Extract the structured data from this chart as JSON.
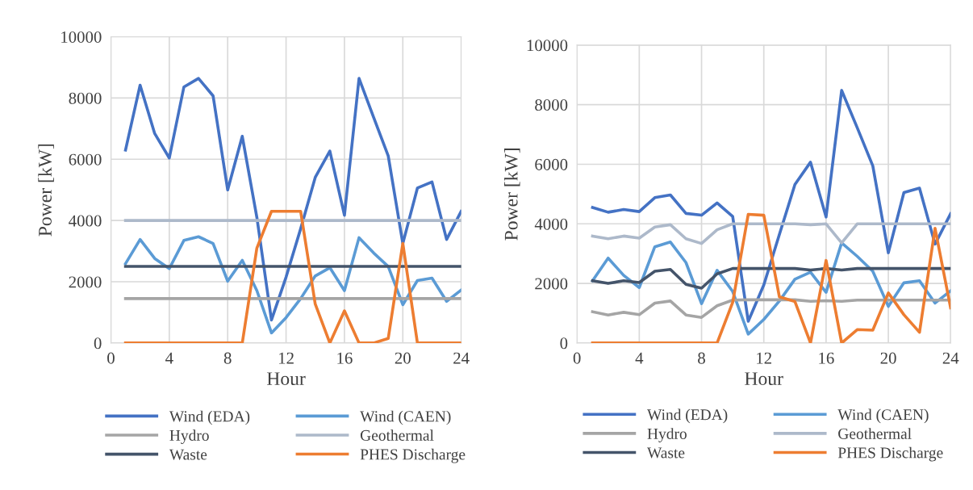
{
  "chart_data": [
    {
      "type": "line",
      "xlabel": "Hour",
      "ylabel": "Power [kW]",
      "xlim": [
        0,
        24
      ],
      "xticks": [
        0,
        4,
        8,
        12,
        16,
        20,
        24
      ],
      "ylim": [
        0,
        10000
      ],
      "yticks": [
        0,
        2000,
        4000,
        6000,
        8000,
        10000
      ],
      "grid": true,
      "legend": "bottom",
      "x": [
        1,
        2,
        3,
        4,
        5,
        6,
        7,
        8,
        9,
        10,
        11,
        12,
        13,
        14,
        15,
        16,
        17,
        18,
        19,
        20,
        21,
        22,
        23,
        24
      ],
      "series": [
        {
          "name": "Wind (EDA)",
          "color": "#4472c4",
          "values": [
            6300,
            8420,
            6840,
            6040,
            8360,
            8640,
            8070,
            5000,
            6750,
            4100,
            750,
            2150,
            3730,
            5410,
            6270,
            4170,
            8640,
            7370,
            6110,
            3250,
            5060,
            5260,
            3380,
            4300
          ]
        },
        {
          "name": "Wind (CAEN)",
          "color": "#5b9bd5",
          "values": [
            2590,
            3380,
            2760,
            2430,
            3350,
            3470,
            3250,
            2020,
            2700,
            1710,
            330,
            830,
            1450,
            2190,
            2460,
            1710,
            3440,
            2940,
            2500,
            1250,
            2040,
            2120,
            1360,
            1730
          ]
        },
        {
          "name": "Hydro",
          "color": "#a5a5a5",
          "values": [
            1450,
            1450,
            1450,
            1450,
            1450,
            1450,
            1450,
            1450,
            1450,
            1450,
            1450,
            1450,
            1450,
            1450,
            1450,
            1450,
            1450,
            1450,
            1450,
            1450,
            1450,
            1450,
            1450,
            1450
          ]
        },
        {
          "name": "Geothermal",
          "color": "#adb9ca",
          "values": [
            4000,
            4000,
            4000,
            4000,
            4000,
            4000,
            4000,
            4000,
            4000,
            4000,
            4000,
            4000,
            4000,
            4000,
            4000,
            4000,
            4000,
            4000,
            4000,
            4000,
            4000,
            4000,
            4000,
            4000
          ]
        },
        {
          "name": "Waste",
          "color": "#44546a",
          "values": [
            2500,
            2500,
            2500,
            2500,
            2500,
            2500,
            2500,
            2500,
            2500,
            2500,
            2500,
            2500,
            2500,
            2500,
            2500,
            2500,
            2500,
            2500,
            2500,
            2500,
            2500,
            2500,
            2500,
            2500
          ]
        },
        {
          "name": "PHES Discharge",
          "color": "#ed7d31",
          "values": [
            0,
            0,
            0,
            0,
            0,
            0,
            0,
            0,
            0,
            3100,
            4300,
            4300,
            4300,
            1270,
            0,
            1050,
            0,
            0,
            150,
            3250,
            0,
            0,
            0,
            0
          ]
        }
      ]
    },
    {
      "type": "line",
      "xlabel": "Hour",
      "ylabel": "Power [kW]",
      "xlim": [
        0,
        24
      ],
      "xticks": [
        0,
        4,
        8,
        12,
        16,
        20,
        24
      ],
      "ylim": [
        0,
        10000
      ],
      "yticks": [
        0,
        2000,
        4000,
        6000,
        8000,
        10000
      ],
      "grid": true,
      "legend": "bottom",
      "x": [
        1,
        2,
        3,
        4,
        5,
        6,
        7,
        8,
        9,
        10,
        11,
        12,
        13,
        14,
        15,
        16,
        17,
        18,
        19,
        20,
        21,
        22,
        23,
        24
      ],
      "series": [
        {
          "name": "Wind (EDA)",
          "color": "#4472c4",
          "values": [
            4550,
            4390,
            4480,
            4410,
            4880,
            4970,
            4350,
            4290,
            4700,
            4250,
            730,
            1950,
            3640,
            5320,
            6070,
            4230,
            8480,
            7230,
            5950,
            3030,
            5050,
            5200,
            3320,
            4340
          ]
        },
        {
          "name": "Wind (CAEN)",
          "color": "#5b9bd5",
          "values": [
            2090,
            2850,
            2270,
            1860,
            3230,
            3390,
            2700,
            1320,
            2440,
            1730,
            300,
            790,
            1410,
            2140,
            2380,
            1700,
            3360,
            2910,
            2410,
            1230,
            2020,
            2090,
            1340,
            1750
          ]
        },
        {
          "name": "Hydro",
          "color": "#a5a5a5",
          "values": [
            1050,
            940,
            1030,
            950,
            1340,
            1410,
            940,
            860,
            1250,
            1440,
            1450,
            1450,
            1450,
            1450,
            1400,
            1420,
            1400,
            1440,
            1440,
            1440,
            1440,
            1440,
            1440,
            1440
          ]
        },
        {
          "name": "Geothermal",
          "color": "#adb9ca",
          "values": [
            3590,
            3500,
            3590,
            3520,
            3890,
            3970,
            3500,
            3340,
            3800,
            4000,
            4000,
            4000,
            4000,
            4000,
            3970,
            4000,
            3360,
            4000,
            4000,
            4000,
            4000,
            4000,
            4000,
            4000
          ]
        },
        {
          "name": "Waste",
          "color": "#44546a",
          "values": [
            2090,
            2000,
            2090,
            2030,
            2410,
            2470,
            1970,
            1840,
            2320,
            2500,
            2500,
            2500,
            2500,
            2500,
            2450,
            2500,
            2450,
            2500,
            2500,
            2500,
            2500,
            2500,
            2500,
            2500
          ]
        },
        {
          "name": "PHES Discharge",
          "color": "#ed7d31",
          "values": [
            0,
            0,
            0,
            0,
            0,
            0,
            0,
            0,
            0,
            1360,
            4320,
            4290,
            1550,
            1390,
            0,
            2770,
            0,
            450,
            430,
            1680,
            950,
            360,
            3850,
            1180
          ]
        }
      ]
    }
  ]
}
